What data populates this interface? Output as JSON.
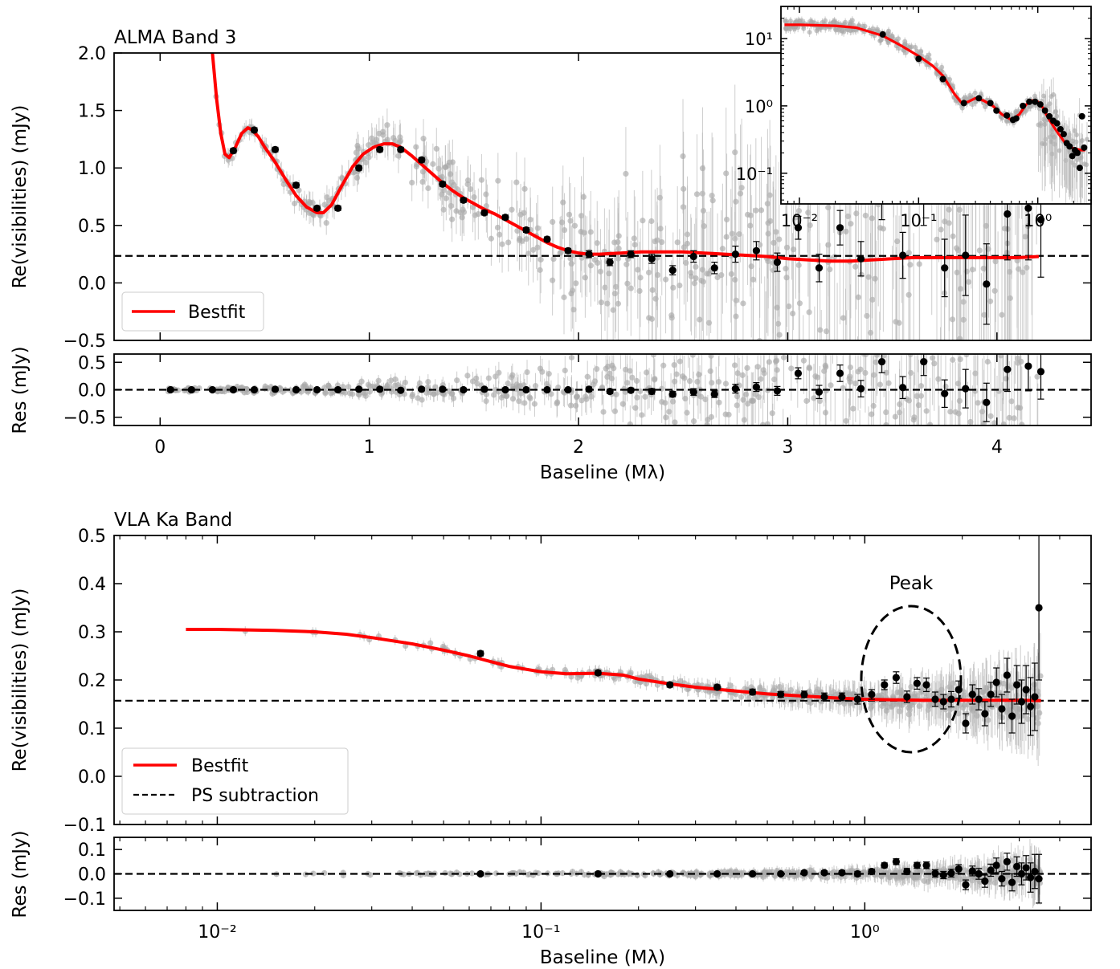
{
  "chart_data": [
    {
      "id": "alma_main",
      "type": "scatter",
      "title": "ALMA Band 3",
      "xlabel": "",
      "ylabel": "Re(visibilities) (mJy)",
      "xlim": [
        -0.22,
        4.45
      ],
      "ylim": [
        -0.5,
        2.0
      ],
      "yticks": [
        "2.0",
        "1.5",
        "1.0",
        "0.5",
        "0.0",
        "−0.5"
      ],
      "ytick_values": [
        2.0,
        1.5,
        1.0,
        0.5,
        0.0,
        -0.5
      ],
      "xscale": "linear",
      "reference_line": 0.235,
      "legend": {
        "position": "lower-left",
        "entries": [
          {
            "label": "Bestfit",
            "color": "#ff0000",
            "style": "solid"
          }
        ]
      },
      "series": [
        {
          "name": "Bestfit",
          "kind": "line",
          "color": "#ff0000",
          "x": [
            0.25,
            0.27,
            0.29,
            0.31,
            0.33,
            0.36,
            0.39,
            0.42,
            0.44,
            0.47,
            0.5,
            0.55,
            0.6,
            0.65,
            0.7,
            0.75,
            0.78,
            0.82,
            0.87,
            0.92,
            0.97,
            1.02,
            1.07,
            1.11,
            1.15,
            1.2,
            1.25,
            1.3,
            1.35,
            1.4,
            1.45,
            1.5,
            1.55,
            1.6,
            1.65,
            1.7,
            1.75,
            1.8,
            1.85,
            1.9,
            1.95,
            2.0,
            2.05,
            2.1,
            2.2,
            2.3,
            2.4,
            2.5,
            2.6,
            2.7,
            2.8,
            2.9,
            3.0,
            3.1,
            3.2,
            3.3,
            3.4,
            3.5,
            3.6,
            3.7,
            3.8,
            3.9,
            4.0,
            4.1,
            4.2
          ],
          "y": [
            2.0,
            1.6,
            1.3,
            1.12,
            1.09,
            1.18,
            1.3,
            1.35,
            1.33,
            1.27,
            1.18,
            1.05,
            0.9,
            0.76,
            0.66,
            0.61,
            0.61,
            0.68,
            0.85,
            1.01,
            1.12,
            1.18,
            1.21,
            1.21,
            1.18,
            1.11,
            1.03,
            0.95,
            0.87,
            0.8,
            0.74,
            0.69,
            0.64,
            0.6,
            0.55,
            0.5,
            0.45,
            0.4,
            0.35,
            0.31,
            0.28,
            0.26,
            0.25,
            0.25,
            0.26,
            0.27,
            0.27,
            0.27,
            0.26,
            0.25,
            0.24,
            0.23,
            0.21,
            0.2,
            0.19,
            0.19,
            0.2,
            0.21,
            0.22,
            0.22,
            0.22,
            0.22,
            0.22,
            0.22,
            0.23
          ]
        },
        {
          "name": "binned",
          "kind": "errorpoints",
          "color": "#000000",
          "x": [
            0.35,
            0.45,
            0.55,
            0.65,
            0.75,
            0.85,
            0.95,
            1.05,
            1.15,
            1.25,
            1.35,
            1.45,
            1.55,
            1.65,
            1.75,
            1.85,
            1.95,
            2.05,
            2.15,
            2.25,
            2.35,
            2.45,
            2.55,
            2.65,
            2.75,
            2.85,
            2.95,
            3.05,
            3.15,
            3.25,
            3.35,
            3.45,
            3.55,
            3.65,
            3.75,
            3.85,
            3.95,
            4.05,
            4.15,
            4.21
          ],
          "y": [
            1.15,
            1.33,
            1.16,
            0.85,
            0.65,
            0.65,
            1.0,
            1.16,
            1.16,
            1.07,
            0.86,
            0.72,
            0.61,
            0.57,
            0.46,
            0.38,
            0.28,
            0.25,
            0.18,
            0.25,
            0.21,
            0.11,
            0.23,
            0.13,
            0.25,
            0.28,
            0.18,
            0.48,
            0.13,
            0.48,
            0.21,
            0.75,
            0.24,
            0.75,
            0.13,
            0.24,
            -0.01,
            0.6,
            0.65,
            0.55
          ],
          "err": [
            0.02,
            0.02,
            0.02,
            0.02,
            0.02,
            0.02,
            0.02,
            0.02,
            0.02,
            0.02,
            0.02,
            0.02,
            0.02,
            0.02,
            0.02,
            0.02,
            0.02,
            0.03,
            0.03,
            0.03,
            0.04,
            0.04,
            0.05,
            0.05,
            0.07,
            0.08,
            0.08,
            0.1,
            0.12,
            0.15,
            0.15,
            0.2,
            0.2,
            0.25,
            0.25,
            0.35,
            0.35,
            0.4,
            0.45,
            0.5
          ]
        }
      ]
    },
    {
      "id": "alma_residual",
      "type": "scatter",
      "xlabel": "Baseline (Mλ)",
      "ylabel": "Res (mJy)",
      "xlim": [
        -0.22,
        4.45
      ],
      "ylim": [
        -0.65,
        0.65
      ],
      "xticks": [
        "0",
        "1",
        "2",
        "3",
        "4"
      ],
      "xtick_values": [
        0,
        1,
        2,
        3,
        4
      ],
      "yticks": [
        "0.5",
        "0.0",
        "−0.5"
      ],
      "ytick_values": [
        0.5,
        0.0,
        -0.5
      ],
      "reference_line": 0.0,
      "series": [
        {
          "name": "binned residuals",
          "kind": "errorpoints",
          "color": "#000000",
          "x": [
            0.05,
            0.15,
            0.25,
            0.35,
            0.45,
            0.55,
            0.65,
            0.75,
            0.85,
            0.95,
            1.05,
            1.15,
            1.25,
            1.35,
            1.45,
            1.55,
            1.65,
            1.75,
            1.85,
            1.95,
            2.05,
            2.15,
            2.25,
            2.35,
            2.45,
            2.55,
            2.65,
            2.75,
            2.85,
            2.95,
            3.05,
            3.15,
            3.25,
            3.35,
            3.45,
            3.55,
            3.65,
            3.75,
            3.85,
            3.95,
            4.05,
            4.15,
            4.21
          ],
          "y": [
            0.0,
            0.0,
            0.0,
            0.0,
            0.0,
            0.01,
            0.0,
            0.0,
            0.0,
            0.01,
            0.01,
            -0.01,
            0.01,
            0.01,
            0.0,
            0.01,
            0.0,
            0.0,
            0.0,
            0.0,
            0.01,
            -0.03,
            -0.01,
            -0.03,
            -0.08,
            -0.04,
            -0.08,
            0.02,
            0.05,
            -0.02,
            0.3,
            -0.04,
            0.3,
            0.02,
            0.51,
            0.04,
            0.51,
            -0.07,
            0.02,
            -0.23,
            0.37,
            0.43,
            0.33
          ],
          "err": [
            0.03,
            0.03,
            0.03,
            0.03,
            0.03,
            0.03,
            0.03,
            0.03,
            0.03,
            0.03,
            0.03,
            0.03,
            0.03,
            0.03,
            0.03,
            0.03,
            0.03,
            0.03,
            0.03,
            0.03,
            0.04,
            0.04,
            0.04,
            0.05,
            0.05,
            0.06,
            0.06,
            0.08,
            0.08,
            0.08,
            0.1,
            0.12,
            0.15,
            0.15,
            0.2,
            0.2,
            0.25,
            0.25,
            0.35,
            0.35,
            0.4,
            0.45,
            0.5
          ]
        }
      ]
    },
    {
      "id": "alma_inset",
      "type": "scatter",
      "xscale": "log",
      "yscale": "log",
      "xlim": [
        0.007,
        2.8
      ],
      "ylim": [
        0.035,
        30
      ],
      "xticks": [
        "10⁻²",
        "10⁻¹",
        "10⁰"
      ],
      "xtick_values": [
        0.01,
        0.1,
        1
      ],
      "yticks": [
        "10¹",
        "10⁰",
        "10⁻¹"
      ],
      "ytick_values": [
        10,
        1,
        0.1
      ],
      "series": [
        {
          "name": "Bestfit",
          "kind": "line",
          "color": "#ff0000",
          "x": [
            0.0075,
            0.01,
            0.02,
            0.03,
            0.05,
            0.07,
            0.1,
            0.13,
            0.16,
            0.2,
            0.23,
            0.26,
            0.3,
            0.35,
            0.42,
            0.5,
            0.6,
            0.7,
            0.8,
            0.9,
            1.0,
            1.1,
            1.2,
            1.35,
            1.5,
            1.7,
            1.9,
            2.1,
            2.3,
            2.5
          ],
          "y": [
            16,
            16,
            15.5,
            14.5,
            11,
            8,
            5.5,
            4,
            2.8,
            1.5,
            1.1,
            1.15,
            1.3,
            1.2,
            1.0,
            0.75,
            0.62,
            0.75,
            1.05,
            1.2,
            1.15,
            0.95,
            0.7,
            0.5,
            0.38,
            0.28,
            0.24,
            0.23,
            0.22,
            0.22
          ]
        },
        {
          "name": "binned",
          "kind": "points",
          "color": "#000000",
          "x": [
            0.05,
            0.1,
            0.16,
            0.24,
            0.32,
            0.4,
            0.45,
            0.55,
            0.62,
            0.66,
            0.75,
            0.85,
            0.95,
            1.05,
            1.15,
            1.25,
            1.35,
            1.45,
            1.55,
            1.65,
            1.75,
            1.85,
            1.95,
            2.05,
            2.15,
            2.25,
            2.35,
            2.45
          ],
          "y": [
            11.5,
            5.0,
            2.5,
            1.1,
            1.3,
            1.1,
            0.85,
            0.72,
            0.62,
            0.65,
            1.0,
            1.15,
            1.15,
            1.05,
            0.85,
            0.7,
            0.6,
            0.55,
            0.45,
            0.38,
            0.28,
            0.25,
            0.18,
            0.22,
            0.2,
            0.12,
            0.7,
            0.24
          ]
        }
      ]
    },
    {
      "id": "vla_main",
      "type": "scatter",
      "title": "VLA Ka Band",
      "xlabel": "",
      "ylabel": "Re(visibilities) (mJy)",
      "xscale": "log",
      "xlim": [
        0.0048,
        5.0
      ],
      "ylim": [
        -0.1,
        0.5
      ],
      "yticks": [
        "0.5",
        "0.4",
        "0.3",
        "0.2",
        "0.1",
        "0.0",
        "−0.1"
      ],
      "ytick_values": [
        0.5,
        0.4,
        0.3,
        0.2,
        0.1,
        0.0,
        -0.1
      ],
      "reference_line": 0.157,
      "annotation": {
        "text": "Peak",
        "x": 1.3,
        "y": 0.235
      },
      "legend": {
        "position": "lower-left",
        "entries": [
          {
            "label": "Bestfit",
            "color": "#ff0000",
            "style": "solid"
          },
          {
            "label": "PS subtraction",
            "color": "#000000",
            "style": "dashed"
          }
        ]
      },
      "series": [
        {
          "name": "Bestfit",
          "kind": "line",
          "color": "#ff0000",
          "x": [
            0.008,
            0.01,
            0.015,
            0.02,
            0.025,
            0.03,
            0.04,
            0.05,
            0.06,
            0.07,
            0.08,
            0.1,
            0.12,
            0.15,
            0.18,
            0.2,
            0.25,
            0.3,
            0.4,
            0.5,
            0.6,
            0.8,
            1.0,
            1.2,
            1.5,
            2.0,
            2.5,
            3.0,
            3.5
          ],
          "y": [
            0.305,
            0.305,
            0.303,
            0.3,
            0.295,
            0.288,
            0.275,
            0.262,
            0.25,
            0.238,
            0.228,
            0.217,
            0.213,
            0.214,
            0.21,
            0.202,
            0.192,
            0.185,
            0.177,
            0.171,
            0.168,
            0.163,
            0.16,
            0.159,
            0.158,
            0.158,
            0.158,
            0.158,
            0.157
          ]
        },
        {
          "name": "binned",
          "kind": "errorpoints",
          "color": "#000000",
          "x": [
            0.065,
            0.15,
            0.25,
            0.35,
            0.45,
            0.55,
            0.65,
            0.75,
            0.85,
            0.95,
            1.05,
            1.15,
            1.25,
            1.35,
            1.45,
            1.55,
            1.65,
            1.75,
            1.85,
            1.95,
            2.05,
            2.15,
            2.25,
            2.35,
            2.45,
            2.55,
            2.65,
            2.75,
            2.85,
            2.95,
            3.05,
            3.15,
            3.25,
            3.35,
            3.45
          ],
          "y": [
            0.255,
            0.215,
            0.19,
            0.185,
            0.175,
            0.17,
            0.17,
            0.165,
            0.165,
            0.16,
            0.17,
            0.19,
            0.205,
            0.165,
            0.193,
            0.19,
            0.16,
            0.155,
            0.16,
            0.18,
            0.11,
            0.17,
            0.16,
            0.13,
            0.17,
            0.195,
            0.14,
            0.21,
            0.125,
            0.19,
            0.155,
            0.18,
            0.145,
            0.165,
            0.35
          ],
          "err": [
            0.005,
            0.005,
            0.005,
            0.005,
            0.006,
            0.006,
            0.007,
            0.008,
            0.008,
            0.01,
            0.01,
            0.01,
            0.012,
            0.012,
            0.012,
            0.014,
            0.015,
            0.015,
            0.016,
            0.018,
            0.02,
            0.02,
            0.022,
            0.025,
            0.025,
            0.03,
            0.03,
            0.035,
            0.035,
            0.04,
            0.045,
            0.05,
            0.06,
            0.07,
            0.15
          ]
        }
      ]
    },
    {
      "id": "vla_residual",
      "type": "scatter",
      "xlabel": "Baseline (Mλ)",
      "ylabel": "Res (mJy)",
      "xscale": "log",
      "xlim": [
        0.0048,
        5.0
      ],
      "ylim": [
        -0.15,
        0.15
      ],
      "xticks": [
        "10⁻²",
        "10⁻¹",
        "10⁰"
      ],
      "xtick_values": [
        0.01,
        0.1,
        1
      ],
      "yticks": [
        "0.1",
        "0.0",
        "−0.1"
      ],
      "ytick_values": [
        0.1,
        0.0,
        -0.1
      ],
      "reference_line": 0.0,
      "series": [
        {
          "name": "binned residuals",
          "kind": "errorpoints",
          "color": "#000000",
          "x": [
            0.065,
            0.15,
            0.25,
            0.35,
            0.45,
            0.55,
            0.65,
            0.75,
            0.85,
            0.95,
            1.05,
            1.15,
            1.25,
            1.35,
            1.45,
            1.55,
            1.65,
            1.75,
            1.85,
            1.95,
            2.05,
            2.15,
            2.25,
            2.35,
            2.45,
            2.55,
            2.65,
            2.75,
            2.85,
            2.95,
            3.05,
            3.15,
            3.25,
            3.35,
            3.45
          ],
          "y": [
            0.0,
            0.0,
            0.0,
            0.0,
            0.0,
            0.0,
            0.005,
            0.005,
            0.005,
            0.0,
            0.01,
            0.035,
            0.05,
            0.01,
            0.035,
            0.035,
            0.002,
            -0.005,
            0.003,
            0.02,
            -0.045,
            0.012,
            0.0,
            -0.03,
            0.015,
            0.035,
            -0.02,
            0.05,
            -0.035,
            0.03,
            0.0,
            0.025,
            -0.015,
            0.01,
            -0.02
          ],
          "err": [
            0.005,
            0.005,
            0.005,
            0.005,
            0.006,
            0.006,
            0.007,
            0.008,
            0.008,
            0.01,
            0.01,
            0.01,
            0.012,
            0.012,
            0.012,
            0.014,
            0.015,
            0.015,
            0.016,
            0.018,
            0.02,
            0.02,
            0.022,
            0.025,
            0.025,
            0.03,
            0.03,
            0.035,
            0.035,
            0.04,
            0.045,
            0.05,
            0.06,
            0.07,
            0.1
          ]
        }
      ]
    }
  ]
}
